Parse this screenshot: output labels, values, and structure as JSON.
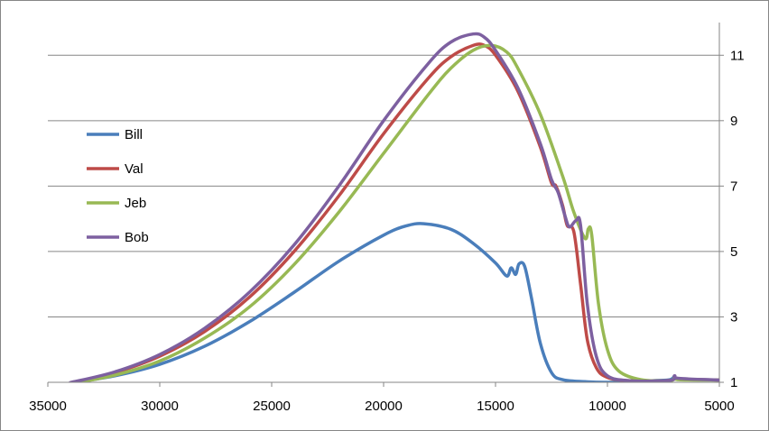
{
  "chart_data": {
    "type": "line",
    "title": "",
    "xlabel": "",
    "ylabel": "",
    "xlim": [
      35000,
      5000
    ],
    "ylim": [
      1,
      12
    ],
    "x_reversed": true,
    "y_axis_side": "right",
    "grid": "horizontal",
    "legend_position": "left",
    "x_ticks": [
      35000,
      30000,
      25000,
      20000,
      15000,
      10000,
      5000
    ],
    "x_tick_labels": [
      "35000",
      "30000",
      "25000",
      "20000",
      "15000",
      "10000",
      "5000"
    ],
    "y_ticks": [
      1,
      3,
      5,
      7,
      9,
      11
    ],
    "y_tick_labels": [
      "1",
      "3",
      "5",
      "7",
      "9",
      "11"
    ],
    "series": [
      {
        "name": "Bill",
        "color": "#4A7EBB",
        "points": [
          [
            34000,
            0.98
          ],
          [
            32000,
            1.2
          ],
          [
            30000,
            1.55
          ],
          [
            28000,
            2.1
          ],
          [
            26000,
            2.85
          ],
          [
            24000,
            3.75
          ],
          [
            22000,
            4.7
          ],
          [
            20000,
            5.5
          ],
          [
            19000,
            5.78
          ],
          [
            18200,
            5.85
          ],
          [
            17000,
            5.68
          ],
          [
            16000,
            5.25
          ],
          [
            15000,
            4.65
          ],
          [
            14500,
            4.25
          ],
          [
            14300,
            4.5
          ],
          [
            14100,
            4.3
          ],
          [
            13950,
            4.62
          ],
          [
            13700,
            4.55
          ],
          [
            13400,
            3.6
          ],
          [
            13000,
            2.2
          ],
          [
            12500,
            1.3
          ],
          [
            12000,
            1.08
          ],
          [
            11000,
            1.02
          ],
          [
            10000,
            1.0
          ],
          [
            8000,
            1.05
          ],
          [
            7200,
            1.08
          ],
          [
            7000,
            1.18
          ],
          [
            6800,
            1.1
          ],
          [
            5000,
            1.07
          ]
        ]
      },
      {
        "name": "Val",
        "color": "#BE4B48",
        "points": [
          [
            34000,
            0.98
          ],
          [
            32000,
            1.3
          ],
          [
            30000,
            1.8
          ],
          [
            28000,
            2.55
          ],
          [
            26000,
            3.6
          ],
          [
            24000,
            5.0
          ],
          [
            22000,
            6.7
          ],
          [
            20000,
            8.6
          ],
          [
            18000,
            10.3
          ],
          [
            17000,
            10.95
          ],
          [
            16000,
            11.3
          ],
          [
            15500,
            11.3
          ],
          [
            15000,
            11.0
          ],
          [
            14000,
            9.9
          ],
          [
            13000,
            8.2
          ],
          [
            12500,
            7.1
          ],
          [
            12300,
            7.0
          ],
          [
            12000,
            6.4
          ],
          [
            11800,
            5.8
          ],
          [
            11500,
            5.6
          ],
          [
            11200,
            4.0
          ],
          [
            10900,
            2.3
          ],
          [
            10500,
            1.45
          ],
          [
            10000,
            1.15
          ],
          [
            9000,
            1.05
          ],
          [
            7200,
            1.06
          ],
          [
            7000,
            1.18
          ],
          [
            6800,
            1.1
          ],
          [
            5000,
            1.07
          ]
        ]
      },
      {
        "name": "Jeb",
        "color": "#98B954",
        "points": [
          [
            34000,
            0.96
          ],
          [
            32000,
            1.22
          ],
          [
            30000,
            1.65
          ],
          [
            28000,
            2.35
          ],
          [
            26000,
            3.3
          ],
          [
            24000,
            4.6
          ],
          [
            22000,
            6.2
          ],
          [
            20000,
            8.0
          ],
          [
            18000,
            9.8
          ],
          [
            17000,
            10.6
          ],
          [
            16000,
            11.15
          ],
          [
            15200,
            11.3
          ],
          [
            14500,
            11.1
          ],
          [
            14000,
            10.6
          ],
          [
            13000,
            9.2
          ],
          [
            12000,
            7.3
          ],
          [
            11500,
            6.2
          ],
          [
            11000,
            5.4
          ],
          [
            10850,
            5.7
          ],
          [
            10700,
            5.5
          ],
          [
            10400,
            3.4
          ],
          [
            10000,
            2.0
          ],
          [
            9500,
            1.35
          ],
          [
            8500,
            1.08
          ],
          [
            7200,
            1.05
          ],
          [
            7000,
            1.15
          ],
          [
            6800,
            1.08
          ],
          [
            5000,
            1.07
          ]
        ]
      },
      {
        "name": "Bob",
        "color": "#7D60A0",
        "points": [
          [
            34000,
            0.99
          ],
          [
            32000,
            1.32
          ],
          [
            30000,
            1.85
          ],
          [
            28000,
            2.65
          ],
          [
            26000,
            3.75
          ],
          [
            24000,
            5.2
          ],
          [
            22000,
            7.0
          ],
          [
            20000,
            9.0
          ],
          [
            18000,
            10.75
          ],
          [
            17000,
            11.4
          ],
          [
            16000,
            11.65
          ],
          [
            15500,
            11.55
          ],
          [
            15000,
            11.15
          ],
          [
            14000,
            10.0
          ],
          [
            13000,
            8.3
          ],
          [
            12500,
            7.2
          ],
          [
            12200,
            6.8
          ],
          [
            11900,
            6.1
          ],
          [
            11700,
            5.75
          ],
          [
            11400,
            5.95
          ],
          [
            11200,
            5.8
          ],
          [
            10900,
            3.4
          ],
          [
            10500,
            1.8
          ],
          [
            10000,
            1.2
          ],
          [
            9000,
            1.05
          ],
          [
            7200,
            1.06
          ],
          [
            7000,
            1.2
          ],
          [
            6800,
            1.12
          ],
          [
            5000,
            1.07
          ]
        ]
      }
    ]
  }
}
